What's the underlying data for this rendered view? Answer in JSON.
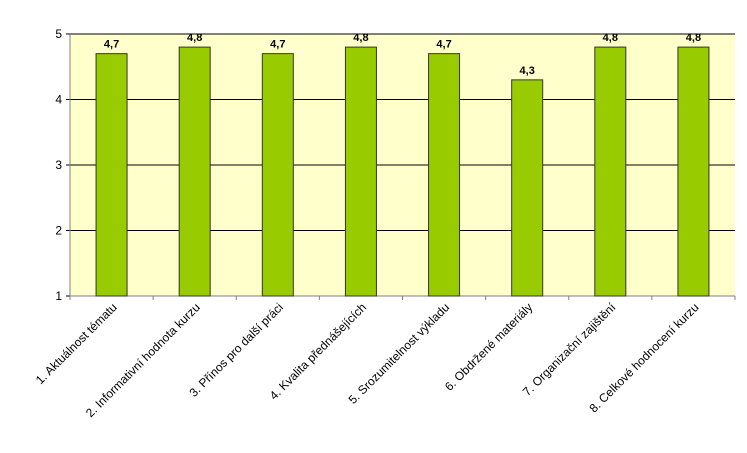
{
  "chart_data": {
    "type": "bar",
    "categories": [
      "1. Aktuálnost tématu",
      "2. Informativní hodnota kurzu",
      "3. Přínos pro další práci",
      "4. Kvalita přednášejících",
      "5. Srozumitelnost výkladu",
      "6. Obdržené materiály",
      "7. Organizační zajištění",
      "8. Celkové hodnocení kurzu"
    ],
    "values": [
      4.7,
      4.8,
      4.7,
      4.8,
      4.7,
      4.3,
      4.8,
      4.8
    ],
    "value_labels": [
      "4,7",
      "4,8",
      "4,7",
      "4,8",
      "4,7",
      "4,3",
      "4,8",
      "4,8"
    ],
    "color": "#99cc00",
    "ylim": [
      1,
      5
    ],
    "yticks": [
      1,
      2,
      3,
      4,
      5
    ],
    "grid": true
  }
}
